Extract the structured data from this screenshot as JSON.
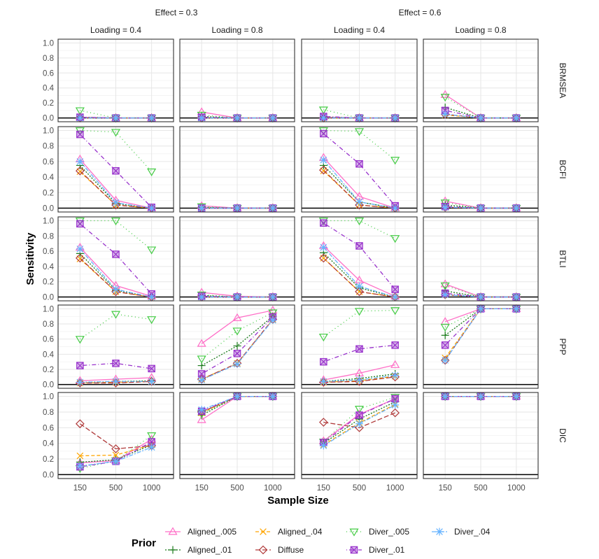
{
  "chart_data": {
    "type": "line",
    "title": "",
    "xlabel": "Sample Size",
    "ylabel": "Sensitivity",
    "ylim": [
      0,
      1
    ],
    "y_ticks": [
      "0.0",
      "0.2",
      "0.4",
      "0.6",
      "0.8",
      "1.0"
    ],
    "x": [
      "150",
      "500",
      "1000"
    ],
    "grid": true,
    "legend_title": "Prior",
    "legend_position": "bottom",
    "effects": [
      {
        "label": "Effect = 0.3",
        "loadings": [
          "Loading = 0.4",
          "Loading = 0.8"
        ]
      },
      {
        "label": "Effect = 0.6",
        "loadings": [
          "Loading = 0.4",
          "Loading = 0.8"
        ]
      }
    ],
    "rows": [
      "BRMSEA",
      "BCFI",
      "BTLI",
      "PPP",
      "DIC"
    ],
    "series": [
      {
        "name": "Aligned_.005",
        "color": "#ff6ec7",
        "marker": "triangle-up",
        "dash": "solid"
      },
      {
        "name": "Aligned_.01",
        "color": "#1a7a1a",
        "marker": "plus",
        "dash": "dotted-dense"
      },
      {
        "name": "Aligned_.04",
        "color": "#ffa500",
        "marker": "cross",
        "dash": "dashed"
      },
      {
        "name": "Diffuse",
        "color": "#b03a3a",
        "marker": "diamond",
        "dash": "longdash"
      },
      {
        "name": "Diver_.005",
        "color": "#44cc44",
        "marker": "triangle-down",
        "dash": "dotted"
      },
      {
        "name": "Diver_.01",
        "color": "#9933cc",
        "marker": "square-x",
        "dash": "dotdash"
      },
      {
        "name": "Diver_.04",
        "color": "#66b3ff",
        "marker": "asterisk",
        "dash": "twodash"
      }
    ],
    "panels": {
      "BRMSEA": [
        {
          "Aligned_.005": [
            0.01,
            0,
            0
          ],
          "Aligned_.01": [
            0.01,
            0,
            0
          ],
          "Aligned_.04": [
            0,
            0,
            0
          ],
          "Diffuse": [
            0,
            0,
            0
          ],
          "Diver_.005": [
            0.1,
            0,
            0
          ],
          "Diver_.01": [
            0.01,
            0,
            0
          ],
          "Diver_.04": [
            0,
            0,
            0
          ]
        },
        {
          "Aligned_.005": [
            0.08,
            0,
            0
          ],
          "Aligned_.01": [
            0.02,
            0,
            0
          ],
          "Aligned_.04": [
            0,
            0,
            0
          ],
          "Diffuse": [
            0,
            0,
            0
          ],
          "Diver_.005": [
            0.04,
            0,
            0
          ],
          "Diver_.01": [
            0.01,
            0,
            0
          ],
          "Diver_.04": [
            0,
            0,
            0
          ]
        },
        {
          "Aligned_.005": [
            0.01,
            0,
            0
          ],
          "Aligned_.01": [
            0.01,
            0,
            0
          ],
          "Aligned_.04": [
            0,
            0,
            0
          ],
          "Diffuse": [
            0,
            0,
            0
          ],
          "Diver_.005": [
            0.11,
            0,
            0
          ],
          "Diver_.01": [
            0.02,
            0,
            0
          ],
          "Diver_.04": [
            0,
            0,
            0
          ]
        },
        {
          "Aligned_.005": [
            0.31,
            0,
            0
          ],
          "Aligned_.01": [
            0.14,
            0,
            0
          ],
          "Aligned_.04": [
            0.04,
            0,
            0
          ],
          "Diffuse": [
            0.05,
            0,
            0
          ],
          "Diver_.005": [
            0.28,
            0,
            0
          ],
          "Diver_.01": [
            0.1,
            0,
            0
          ],
          "Diver_.04": [
            0.05,
            0,
            0
          ]
        }
      ],
      "BCFI": [
        {
          "Aligned_.005": [
            0.63,
            0.1,
            0
          ],
          "Aligned_.01": [
            0.55,
            0.06,
            0
          ],
          "Aligned_.04": [
            0.47,
            0.04,
            0
          ],
          "Diffuse": [
            0.48,
            0.04,
            0
          ],
          "Diver_.005": [
            1.0,
            0.98,
            0.47
          ],
          "Diver_.01": [
            0.95,
            0.48,
            0.01
          ],
          "Diver_.04": [
            0.6,
            0.07,
            0
          ]
        },
        {
          "Aligned_.005": [
            0.03,
            0,
            0
          ],
          "Aligned_.01": [
            0.01,
            0,
            0
          ],
          "Aligned_.04": [
            0,
            0,
            0
          ],
          "Diffuse": [
            0,
            0,
            0
          ],
          "Diver_.005": [
            0.02,
            0,
            0
          ],
          "Diver_.01": [
            0,
            0,
            0
          ],
          "Diver_.04": [
            0,
            0,
            0
          ]
        },
        {
          "Aligned_.005": [
            0.65,
            0.15,
            0
          ],
          "Aligned_.01": [
            0.55,
            0.08,
            0
          ],
          "Aligned_.04": [
            0.48,
            0.04,
            0
          ],
          "Diffuse": [
            0.49,
            0.04,
            0
          ],
          "Diver_.005": [
            1.0,
            0.99,
            0.62
          ],
          "Diver_.01": [
            0.96,
            0.57,
            0.03
          ],
          "Diver_.04": [
            0.62,
            0.08,
            0
          ]
        },
        {
          "Aligned_.005": [
            0.09,
            0,
            0
          ],
          "Aligned_.01": [
            0.04,
            0,
            0
          ],
          "Aligned_.04": [
            0.01,
            0,
            0
          ],
          "Diffuse": [
            0.01,
            0,
            0
          ],
          "Diver_.005": [
            0.07,
            0,
            0
          ],
          "Diver_.01": [
            0.02,
            0,
            0
          ],
          "Diver_.04": [
            0.01,
            0,
            0
          ]
        }
      ],
      "BTLI": [
        {
          "Aligned_.005": [
            0.65,
            0.15,
            0.01
          ],
          "Aligned_.01": [
            0.57,
            0.09,
            0
          ],
          "Aligned_.04": [
            0.5,
            0.07,
            0
          ],
          "Diffuse": [
            0.51,
            0.07,
            0
          ],
          "Diver_.005": [
            1.0,
            1.0,
            0.62
          ],
          "Diver_.01": [
            0.96,
            0.56,
            0.04
          ],
          "Diver_.04": [
            0.63,
            0.1,
            0
          ]
        },
        {
          "Aligned_.005": [
            0.06,
            0.01,
            0
          ],
          "Aligned_.01": [
            0.02,
            0,
            0
          ],
          "Aligned_.04": [
            0,
            0,
            0
          ],
          "Diffuse": [
            0,
            0,
            0
          ],
          "Diver_.005": [
            0.03,
            0,
            0
          ],
          "Diver_.01": [
            0.01,
            0,
            0
          ],
          "Diver_.04": [
            0,
            0,
            0
          ]
        },
        {
          "Aligned_.005": [
            0.67,
            0.22,
            0.01
          ],
          "Aligned_.01": [
            0.58,
            0.12,
            0
          ],
          "Aligned_.04": [
            0.51,
            0.07,
            0
          ],
          "Diffuse": [
            0.51,
            0.07,
            0
          ],
          "Diver_.005": [
            1.0,
            1.0,
            0.77
          ],
          "Diver_.01": [
            0.97,
            0.67,
            0.1
          ],
          "Diver_.04": [
            0.65,
            0.14,
            0
          ]
        },
        {
          "Aligned_.005": [
            0.17,
            0,
            0
          ],
          "Aligned_.01": [
            0.08,
            0,
            0
          ],
          "Aligned_.04": [
            0.03,
            0,
            0
          ],
          "Diffuse": [
            0.03,
            0,
            0
          ],
          "Diver_.005": [
            0.15,
            0,
            0
          ],
          "Diver_.01": [
            0.05,
            0,
            0
          ],
          "Diver_.04": [
            0.03,
            0,
            0
          ]
        }
      ],
      "PPP": [
        {
          "Aligned_.005": [
            0.05,
            0.07,
            0.09
          ],
          "Aligned_.01": [
            0.03,
            0.04,
            0.05
          ],
          "Aligned_.04": [
            0.02,
            0.03,
            0.04
          ],
          "Diffuse": [
            0.02,
            0.02,
            0.04
          ],
          "Diver_.005": [
            0.6,
            0.93,
            0.86
          ],
          "Diver_.01": [
            0.25,
            0.28,
            0.21
          ],
          "Diver_.04": [
            0.03,
            0.04,
            0.04
          ]
        },
        {
          "Aligned_.005": [
            0.54,
            0.88,
            0.98
          ],
          "Aligned_.01": [
            0.25,
            0.51,
            0.9
          ],
          "Aligned_.04": [
            0.07,
            0.28,
            0.86
          ],
          "Diffuse": [
            0.07,
            0.28,
            0.86
          ],
          "Diver_.005": [
            0.34,
            0.71,
            0.95
          ],
          "Diver_.01": [
            0.14,
            0.41,
            0.89
          ],
          "Diver_.04": [
            0.06,
            0.27,
            0.85
          ]
        },
        {
          "Aligned_.005": [
            0.06,
            0.15,
            0.26
          ],
          "Aligned_.01": [
            0.04,
            0.08,
            0.14
          ],
          "Aligned_.04": [
            0.03,
            0.05,
            0.11
          ],
          "Diffuse": [
            0.03,
            0.04,
            0.1
          ],
          "Diver_.005": [
            0.63,
            0.97,
            0.98
          ],
          "Diver_.01": [
            0.3,
            0.47,
            0.52
          ],
          "Diver_.04": [
            0.04,
            0.06,
            0.12
          ]
        },
        {
          "Aligned_.005": [
            0.83,
            1.0,
            1.0
          ],
          "Aligned_.01": [
            0.65,
            1.0,
            1.0
          ],
          "Aligned_.04": [
            0.35,
            1.0,
            1.0
          ],
          "Diffuse": [
            0.32,
            1.0,
            1.0
          ],
          "Diver_.005": [
            0.76,
            1.0,
            1.0
          ],
          "Diver_.01": [
            0.52,
            1.0,
            1.0
          ],
          "Diver_.04": [
            0.32,
            1.0,
            1.0
          ]
        }
      ],
      "DIC": [
        {
          "Aligned_.005": [
            0.15,
            0.18,
            0.45
          ],
          "Aligned_.01": [
            0.16,
            0.19,
            0.38
          ],
          "Aligned_.04": [
            0.24,
            0.25,
            0.38
          ],
          "Diffuse": [
            0.65,
            0.33,
            0.37
          ],
          "Diver_.005": [
            0.08,
            0.18,
            0.5
          ],
          "Diver_.01": [
            0.1,
            0.17,
            0.42
          ],
          "Diver_.04": [
            0.11,
            0.17,
            0.35
          ]
        },
        {
          "Aligned_.005": [
            0.7,
            1.0,
            1.0
          ],
          "Aligned_.01": [
            0.76,
            1.0,
            1.0
          ],
          "Aligned_.04": [
            0.79,
            1.0,
            1.0
          ],
          "Diffuse": [
            0.8,
            1.0,
            1.0
          ],
          "Diver_.005": [
            0.78,
            1.0,
            1.0
          ],
          "Diver_.01": [
            0.81,
            1.0,
            1.0
          ],
          "Diver_.04": [
            0.83,
            1.0,
            1.0
          ]
        },
        {
          "Aligned_.005": [
            0.43,
            0.77,
            0.97
          ],
          "Aligned_.01": [
            0.4,
            0.71,
            0.93
          ],
          "Aligned_.04": [
            0.38,
            0.66,
            0.9
          ],
          "Diffuse": [
            0.67,
            0.6,
            0.79
          ],
          "Diver_.005": [
            0.42,
            0.84,
            0.99
          ],
          "Diver_.01": [
            0.41,
            0.76,
            0.97
          ],
          "Diver_.04": [
            0.37,
            0.65,
            0.89
          ]
        },
        {
          "Aligned_.005": [
            1.0,
            1.0,
            1.0
          ],
          "Aligned_.01": [
            1.0,
            1.0,
            1.0
          ],
          "Aligned_.04": [
            1.0,
            1.0,
            1.0
          ],
          "Diffuse": [
            1.0,
            1.0,
            1.0
          ],
          "Diver_.005": [
            1.0,
            1.0,
            1.0
          ],
          "Diver_.01": [
            1.0,
            1.0,
            1.0
          ],
          "Diver_.04": [
            1.0,
            1.0,
            1.0
          ]
        }
      ]
    },
    "legend_rows": [
      [
        "Aligned_.005",
        "Aligned_.04",
        "Diver_.005",
        "Diver_.04"
      ],
      [
        "Aligned_.01",
        "Diffuse",
        "Diver_.01"
      ]
    ]
  }
}
